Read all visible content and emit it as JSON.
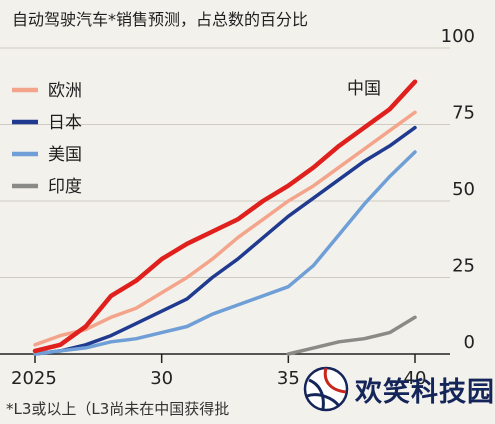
{
  "chart_data": {
    "type": "line",
    "title": "自动驾驶汽车*销售预测，占总数的百分比",
    "xlabel": "",
    "ylabel": "",
    "xlim": [
      2025,
      2040
    ],
    "ylim": [
      0,
      100
    ],
    "x_ticks": [
      2025,
      2030,
      2035,
      2040
    ],
    "x_tick_labels": [
      "2025",
      "30",
      "35",
      "40"
    ],
    "y_ticks": [
      0,
      25,
      50,
      75,
      100
    ],
    "y_tick_labels": [
      "0",
      "25",
      "50",
      "75",
      "100"
    ],
    "grid": "horizontal",
    "legend_position": "left",
    "series": [
      {
        "name": "欧洲",
        "color": "#f4a48a",
        "x": [
          2025,
          2026,
          2027,
          2028,
          2029,
          2030,
          2031,
          2032,
          2033,
          2034,
          2035,
          2036,
          2037,
          2038,
          2039,
          2040
        ],
        "values": [
          3,
          6,
          8,
          12,
          15,
          20,
          25,
          31,
          38,
          44,
          50,
          55,
          61,
          67,
          73,
          79
        ]
      },
      {
        "name": "日本",
        "color": "#1f3a8f",
        "x": [
          2025,
          2026,
          2027,
          2028,
          2029,
          2030,
          2031,
          2032,
          2033,
          2034,
          2035,
          2036,
          2037,
          2038,
          2039,
          2040
        ],
        "values": [
          0,
          1,
          3,
          6,
          10,
          14,
          18,
          25,
          31,
          38,
          45,
          51,
          57,
          63,
          68,
          74
        ]
      },
      {
        "name": "美国",
        "color": "#6f9fd6",
        "x": [
          2025,
          2026,
          2027,
          2028,
          2029,
          2030,
          2031,
          2032,
          2033,
          2034,
          2035,
          2036,
          2037,
          2038,
          2039,
          2040
        ],
        "values": [
          0,
          1,
          2,
          4,
          5,
          7,
          9,
          13,
          16,
          19,
          22,
          29,
          39,
          49,
          58,
          66
        ]
      },
      {
        "name": "印度",
        "color": "#8a8a86",
        "x": [
          2035,
          2036,
          2037,
          2038,
          2039,
          2040
        ],
        "values": [
          0,
          2,
          4,
          5,
          7,
          12
        ]
      },
      {
        "name": "中国",
        "color": "#e0201c",
        "x": [
          2025,
          2026,
          2027,
          2028,
          2029,
          2030,
          2031,
          2032,
          2033,
          2034,
          2035,
          2036,
          2037,
          2038,
          2039,
          2040
        ],
        "values": [
          1,
          3,
          9,
          19,
          24,
          31,
          36,
          40,
          44,
          50,
          55,
          61,
          68,
          74,
          80,
          89
        ]
      }
    ],
    "annotations": [
      "中国"
    ],
    "footnote": "*L3或以上（L3尚未在中国获得批"
  },
  "watermark": {
    "text": "欢笑科技园"
  }
}
